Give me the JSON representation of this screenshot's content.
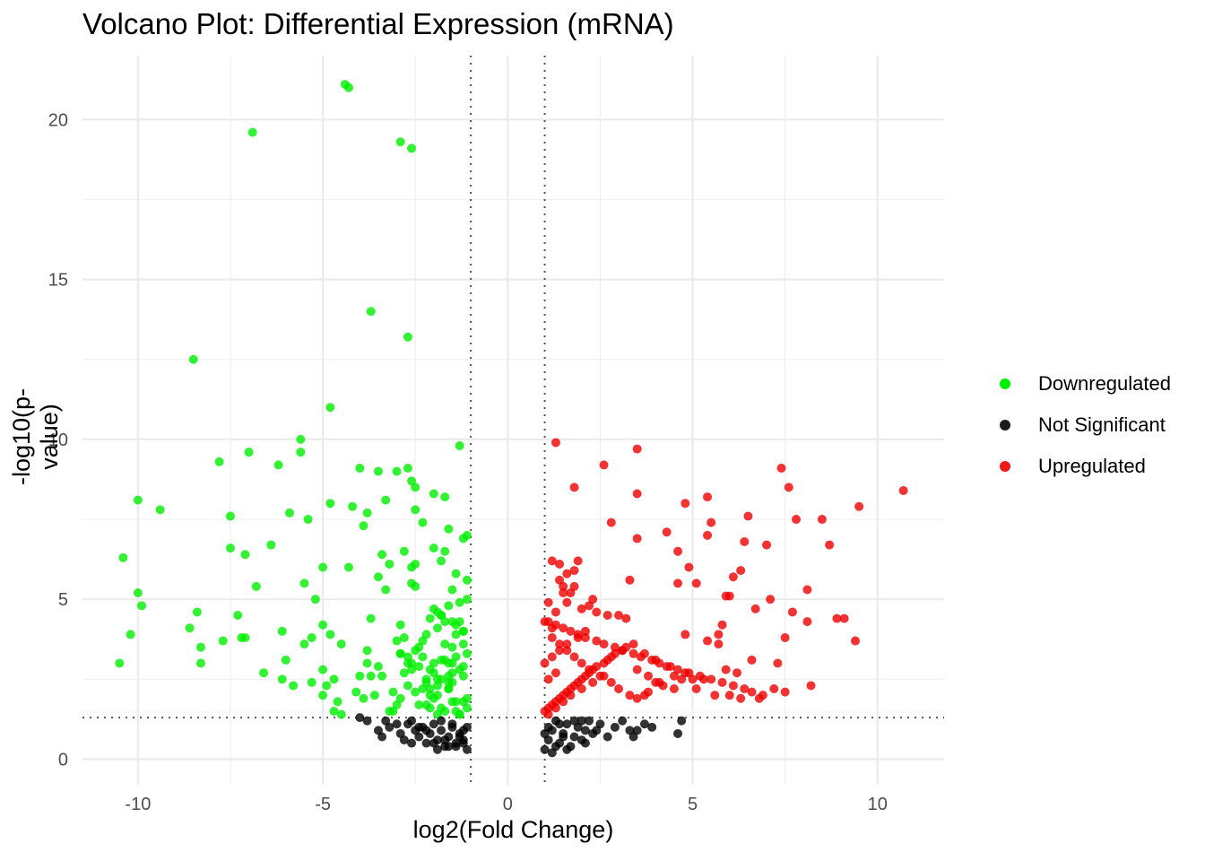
{
  "chart_data": {
    "type": "scatter",
    "title": "Volcano Plot: Differential Expression (mRNA)",
    "xlabel": "log2(Fold Change)",
    "ylabel": "-log10(p-value)",
    "xlim": [
      -11.5,
      11.8
    ],
    "ylim": [
      -0.8,
      22.0
    ],
    "x_ticks": [
      -10,
      -5,
      0,
      5,
      10
    ],
    "y_ticks": [
      0,
      5,
      10,
      15,
      20
    ],
    "x_tick_labels": [
      "-10",
      "-5",
      "0",
      "5",
      "10"
    ],
    "y_tick_labels": [
      "0",
      "5",
      "10",
      "15",
      "20"
    ],
    "thresholds": {
      "fold_change_lines": [
        -1,
        1
      ],
      "pvalue_line": 1.3
    },
    "grid": true,
    "legend_position": "right",
    "series": [
      {
        "name": "Downregulated",
        "color": "#00ee00",
        "x": [
          -4.4,
          -4.3,
          -6.9,
          -2.9,
          -2.6,
          -3.7,
          -2.7,
          -8.5,
          -4.8,
          -5.6,
          -1.3,
          -5.6,
          -7.0,
          -7.8,
          -6.2,
          -4.0,
          -3.5,
          -3.0,
          -2.7,
          -2.6,
          -3.3,
          -2.5,
          -10.0,
          -2.0,
          -1.7,
          -4.8,
          -4.2,
          -9.4,
          -2.5,
          -5.9,
          -3.8,
          -7.5,
          -5.4,
          -2.3,
          -1.6,
          -3.9,
          -1.1,
          -1.2,
          -7.5,
          -6.4,
          -2.0,
          -2.8,
          -1.7,
          -7.1,
          -10.4,
          -3.4,
          -2.5,
          -3.2,
          -4.3,
          -5.0,
          -6.8,
          -1.8,
          -3.5,
          -5.5,
          -10.0,
          -2.6,
          -3.3,
          -9.9,
          -8.4,
          -5.2,
          -7.3,
          -8.6,
          -5.0,
          -3.7,
          -4.8,
          -10.2,
          -7.2,
          -7.7,
          -7.1,
          -6.1,
          -5.3,
          -8.3,
          -5.5,
          -2.9,
          -3.0,
          -2.5,
          -2.9,
          -1.4,
          -1.6,
          -2.7,
          -3.5,
          -4.5,
          -3.8,
          -1.5,
          -1.8,
          -10.5,
          -8.3,
          -6.6,
          -5.0,
          -6.0,
          -2.6,
          -2.0,
          -3.4,
          -2.8,
          -1.9,
          -1.5,
          -2.2,
          -2.7,
          -3.7,
          -4.0,
          -1.6,
          -2.3,
          -4.7,
          -5.3,
          -6.1,
          -2.5,
          -3.1,
          -2.1,
          -1.9,
          -4.1,
          -2.9,
          -3.6,
          -3.9,
          -1.5,
          -1.2,
          -4.9,
          -5.0,
          -5.8,
          -2.4,
          -4.5,
          -2.1,
          -1.8,
          -1.7,
          -3.2,
          -1.3,
          -4.6,
          -3.0,
          -2.2,
          -4.7,
          -2.0,
          -1.4,
          -3.1,
          -1.1,
          -1.9,
          -1.3,
          -2.4,
          -2.3,
          -2.6,
          -2.1,
          -1.5,
          -3.8,
          -1.7,
          -1.2,
          -2.8,
          -1.6,
          -1.2,
          -1.4,
          -2.2,
          -1.8,
          -1.1,
          -1.3,
          -1.5,
          -2.0,
          -1.9,
          -2.5,
          -1.7,
          -1.2,
          -2.9,
          -2.3,
          -1.4,
          -1.6,
          -1.8,
          -1.1,
          -2.1,
          -1.3,
          -1.5,
          -1.9,
          -2.7,
          -1.2,
          -2.4,
          -1.6,
          -1.4,
          -1.8,
          -2.2,
          -1.1,
          -1.3,
          -2.0,
          -1.7,
          -1.5,
          -1.2,
          -2.6,
          -1.9,
          -1.4,
          -1.6,
          -2.1,
          -1.1
        ],
        "y": [
          21.1,
          21.0,
          19.6,
          19.3,
          19.1,
          14.0,
          13.2,
          12.5,
          11.0,
          10.0,
          9.8,
          9.6,
          9.6,
          9.3,
          9.2,
          9.1,
          9.0,
          9.0,
          9.1,
          8.7,
          8.1,
          8.5,
          8.1,
          8.3,
          8.2,
          8.0,
          7.9,
          7.8,
          7.8,
          7.7,
          7.7,
          7.6,
          7.5,
          7.4,
          7.2,
          7.3,
          7.0,
          6.9,
          6.6,
          6.7,
          6.6,
          6.5,
          6.5,
          6.4,
          6.3,
          6.4,
          6.1,
          6.1,
          6.0,
          6.0,
          5.4,
          6.2,
          5.7,
          5.5,
          5.2,
          5.5,
          5.3,
          4.8,
          4.6,
          5.0,
          4.5,
          4.1,
          4.2,
          4.4,
          3.9,
          3.9,
          3.8,
          3.7,
          3.8,
          4.0,
          3.8,
          3.5,
          3.6,
          4.2,
          3.7,
          3.4,
          3.3,
          3.2,
          3.0,
          3.0,
          2.9,
          3.6,
          3.0,
          4.3,
          4.5,
          3.0,
          3.0,
          2.7,
          2.8,
          3.1,
          2.8,
          3.0,
          2.6,
          2.7,
          2.5,
          2.4,
          2.5,
          2.3,
          2.6,
          2.6,
          2.2,
          2.2,
          2.5,
          2.4,
          2.5,
          2.1,
          2.1,
          2.0,
          2.0,
          2.1,
          1.9,
          2.0,
          1.9,
          1.8,
          1.8,
          2.3,
          2.0,
          2.3,
          1.7,
          1.4,
          1.6,
          1.6,
          1.5,
          1.5,
          1.4,
          1.8,
          1.7,
          1.7,
          1.5,
          1.9,
          1.5,
          1.5,
          1.6,
          1.4,
          1.4,
          3.5,
          3.2,
          3.0,
          2.8,
          2.7,
          3.4,
          3.1,
          2.9,
          3.8,
          2.4,
          4.0,
          4.2,
          3.9,
          4.5,
          5.0,
          4.9,
          5.3,
          4.7,
          4.1,
          5.4,
          4.3,
          3.6,
          3.3,
          3.7,
          3.9,
          2.6,
          2.5,
          1.9,
          2.2,
          2.8,
          3.5,
          4.6,
          3.2,
          4.0,
          2.9,
          2.2,
          1.8,
          3.1,
          2.4,
          5.6,
          4.3,
          2.7,
          3.6,
          3.0,
          2.6,
          6.0,
          2.3,
          5.8,
          4.8,
          4.4,
          3.3
        ],
        "opacity": 0.8
      },
      {
        "name": "Not Significant",
        "color": "#000000",
        "x": [
          -4.0,
          -3.8,
          -3.5,
          -3.4,
          -3.2,
          -3.0,
          -2.9,
          -2.8,
          -2.6,
          -2.5,
          -2.4,
          -2.3,
          -2.2,
          -2.1,
          -2.0,
          -1.9,
          -1.8,
          -1.7,
          -1.6,
          -1.5,
          -1.4,
          -1.3,
          -1.2,
          -1.1,
          -3.3,
          -2.7,
          -2.2,
          -1.8,
          -1.5,
          -1.2,
          -2.0,
          -1.6,
          -1.3,
          -2.4,
          -1.9,
          -1.1,
          -2.6,
          -1.4,
          -1.7,
          -1.2,
          1.0,
          1.1,
          1.2,
          1.3,
          1.4,
          1.5,
          1.6,
          1.7,
          1.8,
          1.9,
          2.0,
          2.1,
          2.2,
          2.3,
          2.5,
          2.7,
          2.9,
          3.1,
          3.3,
          3.5,
          3.7,
          3.9,
          4.6,
          4.7,
          1.1,
          1.3,
          1.5,
          1.8,
          2.1,
          2.4,
          3.4,
          1.2,
          1.6,
          2.0,
          1.0,
          1.4
        ],
        "y": [
          1.3,
          1.2,
          0.9,
          0.7,
          1.0,
          1.1,
          0.8,
          0.6,
          1.2,
          0.9,
          0.7,
          1.0,
          0.5,
          0.8,
          1.1,
          0.6,
          0.9,
          0.4,
          0.7,
          1.0,
          0.5,
          0.8,
          0.6,
          0.3,
          1.2,
          1.1,
          0.9,
          1.2,
          1.1,
          0.9,
          0.5,
          0.4,
          0.7,
          1.0,
          0.3,
          1.0,
          0.5,
          0.4,
          0.6,
          0.5,
          0.3,
          0.6,
          0.9,
          1.2,
          0.5,
          0.8,
          1.1,
          0.4,
          0.7,
          1.0,
          0.6,
          0.9,
          1.2,
          0.8,
          1.1,
          0.7,
          1.0,
          1.2,
          0.9,
          0.9,
          1.1,
          1.0,
          0.8,
          1.2,
          1.0,
          0.4,
          0.7,
          1.2,
          0.5,
          0.9,
          0.7,
          0.2,
          0.3,
          1.2,
          0.8,
          1.1
        ],
        "opacity": 0.8
      },
      {
        "name": "Upregulated",
        "color": "#ee0000",
        "x": [
          10.7,
          1.3,
          3.5,
          7.4,
          2.6,
          1.8,
          7.6,
          3.5,
          5.4,
          9.5,
          4.8,
          6.5,
          2.8,
          7.8,
          8.5,
          5.5,
          4.3,
          5.4,
          3.5,
          6.4,
          8.7,
          7.0,
          4.6,
          1.2,
          1.9,
          1.4,
          4.9,
          6.3,
          5.1,
          3.3,
          6.1,
          8.1,
          4.6,
          6.0,
          5.9,
          7.1,
          6.7,
          7.7,
          9.1,
          8.1,
          8.9,
          5.8,
          9.4,
          7.5,
          4.8,
          5.7,
          1.8,
          1.5,
          1.7,
          2.3,
          1.6,
          2.0,
          2.2,
          2.4,
          2.7,
          3.0,
          3.2,
          1.1,
          1.3,
          1.5,
          1.7,
          1.9,
          2.1,
          2.4,
          2.6,
          2.9,
          3.1,
          3.4,
          3.6,
          3.9,
          4.1,
          4.4,
          4.6,
          4.9,
          5.2,
          5.5,
          5.8,
          6.1,
          6.4,
          6.6,
          6.9,
          7.2,
          7.5,
          7.3,
          8.2,
          6.8,
          6.0,
          5.3,
          4.5,
          4.0,
          3.7,
          1.2,
          1.4,
          1.6,
          1.8,
          2.0,
          2.2,
          2.5,
          2.8,
          3.0,
          3.3,
          3.5,
          3.8,
          4.2,
          4.7,
          5.1,
          5.6,
          5.9,
          6.3,
          6.6,
          1.1,
          1.3,
          1.5,
          1.7,
          1.9,
          2.1,
          2.3,
          2.6,
          2.8,
          3.1,
          3.4,
          3.7,
          4.0,
          4.3,
          4.8,
          5.0,
          5.4,
          5.7,
          6.2,
          1.0,
          1.2,
          1.4,
          1.6,
          1.8,
          2.0,
          2.2,
          2.4,
          2.7,
          2.9,
          3.2,
          3.5,
          3.8,
          4.1,
          4.5,
          1.1,
          1.3,
          1.5,
          1.7,
          2.0,
          2.3,
          2.6,
          1.0,
          1.2,
          1.4,
          1.6,
          1.9,
          2.1,
          1.1,
          1.3,
          1.5,
          1.8,
          1.0,
          1.2,
          1.4,
          1.6,
          1.1,
          1.3
        ],
        "y": [
          8.4,
          9.9,
          9.7,
          9.1,
          9.2,
          8.5,
          8.5,
          8.3,
          8.2,
          7.9,
          8.0,
          7.6,
          7.4,
          7.5,
          7.5,
          7.4,
          7.1,
          7.0,
          6.9,
          6.8,
          6.7,
          6.7,
          6.5,
          6.2,
          6.2,
          6.1,
          6.0,
          5.9,
          5.5,
          5.6,
          5.7,
          5.3,
          5.5,
          5.1,
          5.1,
          5.0,
          4.7,
          4.6,
          4.4,
          4.3,
          4.4,
          4.2,
          3.7,
          3.8,
          3.9,
          3.6,
          5.9,
          5.4,
          5.2,
          5.0,
          4.9,
          4.7,
          4.8,
          4.6,
          4.5,
          4.5,
          4.4,
          4.3,
          4.2,
          4.1,
          4.0,
          3.9,
          3.8,
          3.7,
          3.6,
          3.5,
          3.4,
          3.3,
          3.2,
          3.1,
          3.0,
          2.9,
          2.8,
          2.7,
          2.6,
          2.5,
          2.4,
          2.3,
          2.2,
          2.1,
          2.0,
          2.2,
          2.1,
          3.0,
          2.3,
          1.9,
          2.0,
          2.5,
          2.6,
          2.4,
          2.0,
          3.8,
          3.6,
          3.4,
          3.2,
          3.0,
          2.8,
          2.6,
          2.4,
          2.2,
          2.0,
          1.9,
          2.1,
          2.3,
          2.5,
          2.2,
          2.0,
          2.8,
          1.9,
          3.1,
          1.6,
          1.8,
          2.0,
          2.2,
          2.4,
          2.6,
          2.8,
          3.0,
          3.2,
          3.4,
          3.6,
          3.3,
          3.1,
          2.9,
          2.7,
          2.5,
          3.7,
          3.9,
          2.7,
          1.5,
          1.7,
          1.9,
          2.1,
          2.3,
          2.5,
          2.7,
          2.9,
          3.1,
          3.3,
          3.5,
          2.8,
          2.6,
          2.4,
          2.2,
          1.4,
          1.6,
          1.8,
          2.0,
          2.2,
          2.4,
          2.6,
          3.0,
          3.2,
          3.4,
          3.6,
          3.8,
          4.0,
          4.9,
          4.6,
          5.2,
          5.4,
          4.3,
          4.1,
          5.6,
          5.8,
          2.5,
          2.7
        ],
        "opacity": 0.8
      }
    ]
  },
  "legend": {
    "items": [
      {
        "label": "Downregulated",
        "color": "#00ee00"
      },
      {
        "label": "Not Significant",
        "color": "#000000"
      },
      {
        "label": "Upregulated",
        "color": "#ee0000"
      }
    ]
  }
}
